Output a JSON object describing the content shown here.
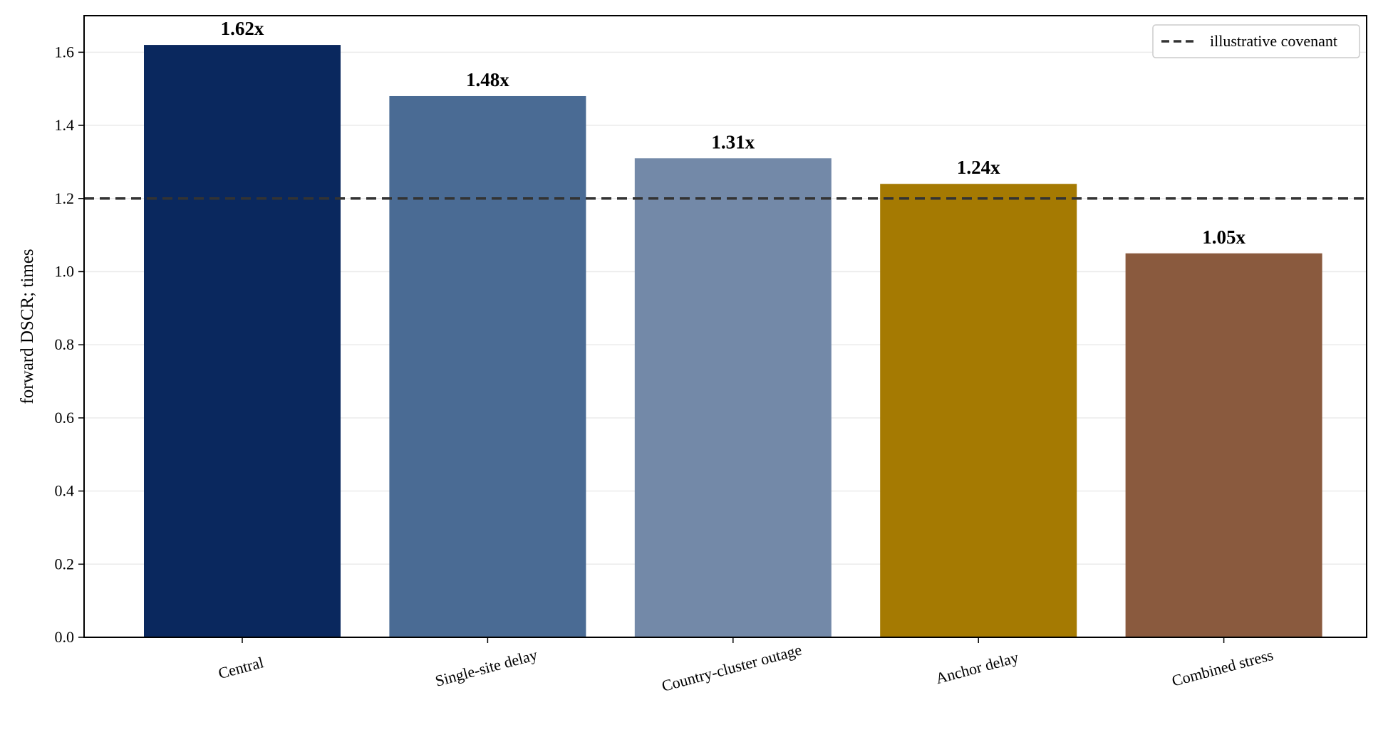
{
  "chart_data": {
    "type": "bar",
    "categories": [
      "Central",
      "Single-site delay",
      "Country-cluster outage",
      "Anchor delay",
      "Combined stress"
    ],
    "values": [
      1.62,
      1.48,
      1.31,
      1.24,
      1.05
    ],
    "value_labels": [
      "1.62x",
      "1.48x",
      "1.31x",
      "1.24x",
      "1.05x"
    ],
    "bar_colors": [
      "#0a285e",
      "#4a6b94",
      "#7389a8",
      "#a57a02",
      "#8a5a3e"
    ],
    "title": "",
    "xlabel": "",
    "ylabel": "forward DSCR; times",
    "ylim": [
      0,
      1.7
    ],
    "yticks": [
      "0.0",
      "0.2",
      "0.4",
      "0.6",
      "0.8",
      "1.0",
      "1.2",
      "1.4",
      "1.6"
    ],
    "grid": "y-axis, light",
    "reference_line": {
      "value": 1.2,
      "label": "illustrative covenant",
      "color": "#333333",
      "style": "dashed"
    },
    "legend_position": "top-right"
  }
}
